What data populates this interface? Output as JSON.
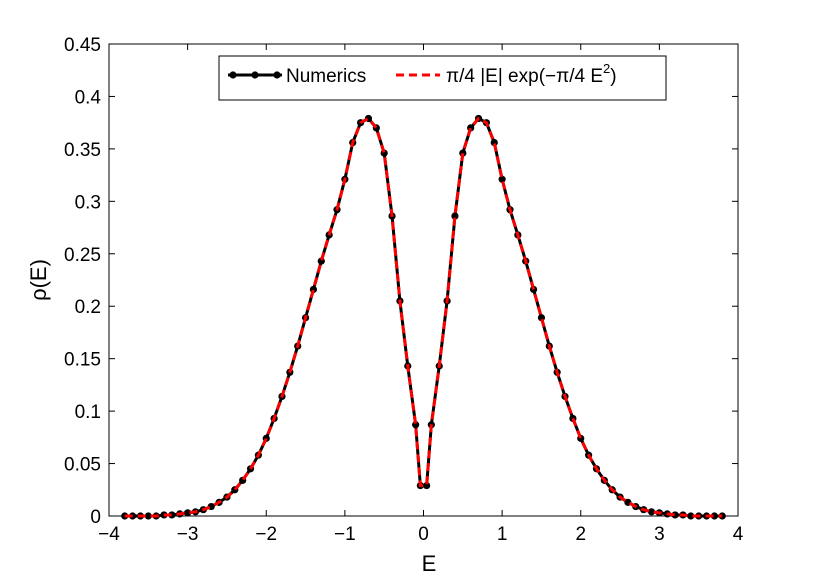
{
  "chart_data": {
    "type": "line",
    "title": "",
    "xlabel": "E",
    "ylabel": "ρ(E)",
    "xlim": [
      -4,
      4
    ],
    "ylim": [
      0,
      0.45
    ],
    "grid": false,
    "legend_position": "top",
    "x_ticks": [
      -4,
      -3,
      -2,
      -1,
      0,
      1,
      2,
      3,
      4
    ],
    "x_tick_labels": [
      "−4",
      "−3",
      "−2",
      "−1",
      "0",
      "1",
      "2",
      "3",
      "4"
    ],
    "y_ticks": [
      0,
      0.05,
      0.1,
      0.15,
      0.2,
      0.25,
      0.3,
      0.35,
      0.4,
      0.45
    ],
    "y_tick_labels": [
      "0",
      "0.05",
      "0.1",
      "0.15",
      "0.2",
      "0.25",
      "0.3",
      "0.35",
      "0.4",
      "0.45"
    ],
    "legend": {
      "numerics_label": "Numerics",
      "fit_label_main": "π/4 |E| exp(−π/4 E",
      "fit_label_sup": "2",
      "fit_label_end": ")"
    },
    "series": [
      {
        "name": "Numerics",
        "color": "#000000",
        "style": "solid-with-dots",
        "x": [
          -3.8,
          -3.7,
          -3.6,
          -3.5,
          -3.4,
          -3.3,
          -3.2,
          -3.1,
          -3.0,
          -2.9,
          -2.8,
          -2.7,
          -2.6,
          -2.5,
          -2.4,
          -2.3,
          -2.2,
          -2.1,
          -2.0,
          -1.9,
          -1.8,
          -1.7,
          -1.6,
          -1.5,
          -1.4,
          -1.3,
          -1.2,
          -1.1,
          -1.0,
          -0.9,
          -0.8,
          -0.7,
          -0.6,
          -0.5,
          -0.4,
          -0.3,
          -0.2,
          -0.1,
          -0.04,
          0.04,
          0.1,
          0.2,
          0.3,
          0.4,
          0.5,
          0.6,
          0.7,
          0.8,
          0.9,
          1.0,
          1.1,
          1.2,
          1.3,
          1.4,
          1.5,
          1.6,
          1.7,
          1.8,
          1.9,
          2.0,
          2.1,
          2.2,
          2.3,
          2.4,
          2.5,
          2.6,
          2.7,
          2.8,
          2.9,
          3.0,
          3.1,
          3.2,
          3.3,
          3.4,
          3.5,
          3.6,
          3.7,
          3.8
        ],
        "y": [
          0,
          0,
          0,
          0,
          0,
          0.001,
          0.001,
          0.002,
          0.003,
          0.004,
          0.006,
          0.009,
          0.013,
          0.018,
          0.025,
          0.034,
          0.045,
          0.058,
          0.074,
          0.093,
          0.114,
          0.137,
          0.162,
          0.189,
          0.216,
          0.243,
          0.268,
          0.292,
          0.321,
          0.356,
          0.375,
          0.379,
          0.37,
          0.346,
          0.286,
          0.205,
          0.143,
          0.087,
          0.029,
          0.029,
          0.087,
          0.143,
          0.205,
          0.286,
          0.346,
          0.37,
          0.379,
          0.375,
          0.356,
          0.321,
          0.292,
          0.268,
          0.243,
          0.216,
          0.189,
          0.162,
          0.137,
          0.114,
          0.093,
          0.074,
          0.058,
          0.045,
          0.034,
          0.025,
          0.018,
          0.013,
          0.009,
          0.006,
          0.004,
          0.003,
          0.002,
          0.001,
          0.001,
          0,
          0,
          0,
          0,
          0
        ]
      },
      {
        "name": "π/4 |E| exp(−π/4 E²)",
        "color": "#ff0000",
        "style": "dashed",
        "x": [
          -3.8,
          -3.7,
          -3.6,
          -3.5,
          -3.4,
          -3.3,
          -3.2,
          -3.1,
          -3.0,
          -2.9,
          -2.8,
          -2.7,
          -2.6,
          -2.5,
          -2.4,
          -2.3,
          -2.2,
          -2.1,
          -2.0,
          -1.9,
          -1.8,
          -1.7,
          -1.6,
          -1.5,
          -1.4,
          -1.3,
          -1.2,
          -1.1,
          -1.0,
          -0.9,
          -0.8,
          -0.7,
          -0.6,
          -0.5,
          -0.4,
          -0.3,
          -0.2,
          -0.1,
          -0.04,
          0.04,
          0.1,
          0.2,
          0.3,
          0.4,
          0.5,
          0.6,
          0.7,
          0.8,
          0.9,
          1.0,
          1.1,
          1.2,
          1.3,
          1.4,
          1.5,
          1.6,
          1.7,
          1.8,
          1.9,
          2.0,
          2.1,
          2.2,
          2.3,
          2.4,
          2.5,
          2.6,
          2.7,
          2.8,
          2.9,
          3.0,
          3.1,
          3.2,
          3.3,
          3.4,
          3.5,
          3.6,
          3.7,
          3.8
        ],
        "y": [
          0,
          0,
          0,
          0,
          0,
          0.001,
          0.001,
          0.002,
          0.003,
          0.004,
          0.006,
          0.009,
          0.013,
          0.018,
          0.025,
          0.034,
          0.045,
          0.058,
          0.074,
          0.093,
          0.114,
          0.137,
          0.162,
          0.189,
          0.216,
          0.243,
          0.268,
          0.292,
          0.321,
          0.356,
          0.375,
          0.379,
          0.37,
          0.346,
          0.286,
          0.205,
          0.143,
          0.087,
          0.029,
          0.029,
          0.087,
          0.143,
          0.205,
          0.286,
          0.346,
          0.37,
          0.379,
          0.375,
          0.356,
          0.321,
          0.292,
          0.268,
          0.243,
          0.216,
          0.189,
          0.162,
          0.137,
          0.114,
          0.093,
          0.074,
          0.058,
          0.045,
          0.034,
          0.025,
          0.018,
          0.013,
          0.009,
          0.006,
          0.004,
          0.003,
          0.002,
          0.001,
          0.001,
          0,
          0,
          0,
          0,
          0
        ]
      }
    ]
  }
}
